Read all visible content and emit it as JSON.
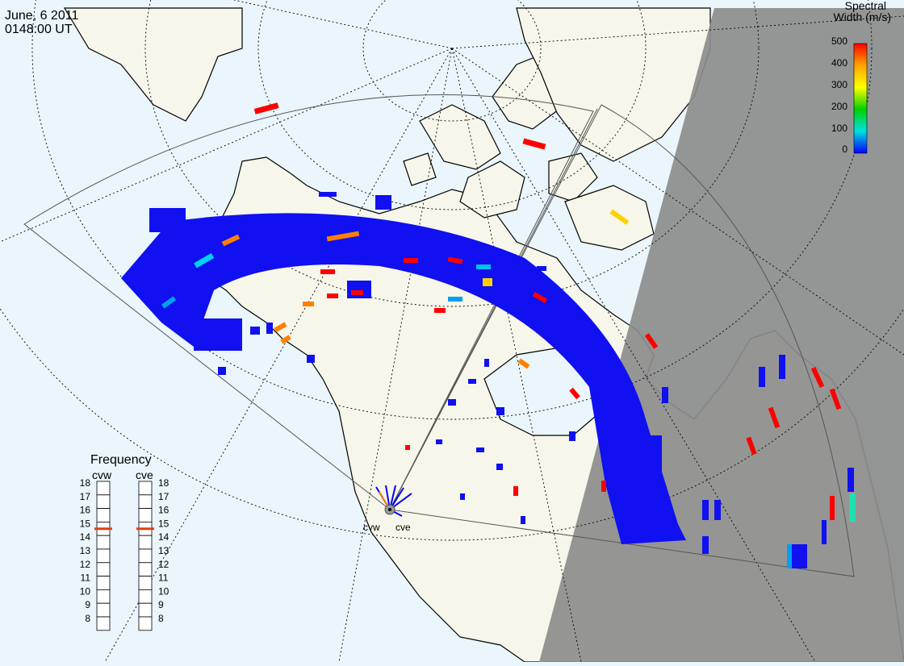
{
  "header": {
    "date": "June, 6 2011",
    "time": "0148:00 UT"
  },
  "colorbar": {
    "title_line1": "Spectral",
    "title_line2": "Width (m/s)",
    "ticks": [
      "500",
      "400",
      "300",
      "200",
      "100",
      "0"
    ],
    "colors": [
      "#ff0000",
      "#ffa500",
      "#ffff00",
      "#00d000",
      "#00e0e0",
      "#0000ff"
    ]
  },
  "frequency": {
    "title": "Frequency",
    "radars": [
      "cvw",
      "cve"
    ],
    "levels": [
      "18",
      "17",
      "16",
      "15",
      "14",
      "13",
      "12",
      "11",
      "10",
      "9",
      "8"
    ],
    "cvw_value": 15,
    "cve_value": 15,
    "marker_color": "#e04010"
  },
  "radar_sites": {
    "cvw_label": "cvw",
    "cve_label": "cve"
  },
  "map": {
    "ocean_color": "#eaf6fc",
    "land_color": "#f7f6ea",
    "night_color": "#8c8c8c",
    "backscatter_color": "#1010f0"
  }
}
